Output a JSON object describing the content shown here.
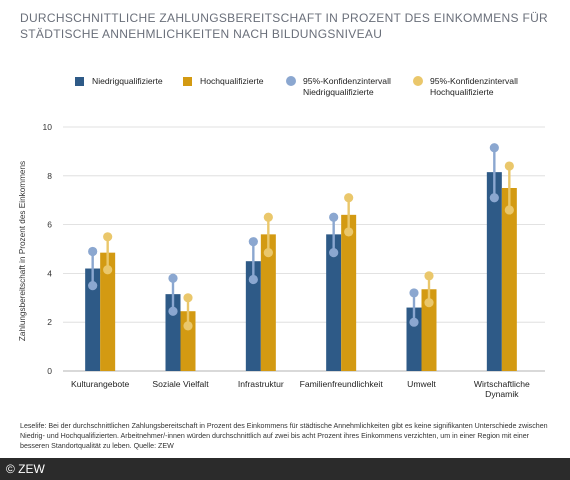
{
  "chart_data": {
    "type": "bar",
    "title": "DURCHSCHNITTLICHE ZAHLUNGSBEREITSCHAFT IN PROZENT DES EINKOMMENS FÜR STÄDTISCHE ANNEHMLICHKEITEN NACH BILDUNGSNIVEAU",
    "ylabel": "Zahlungsbereitschaft in Prozent des Einkommens",
    "xlabel": "",
    "ylim": [
      0,
      10
    ],
    "yticks": [
      "0",
      "2",
      "4",
      "6",
      "8",
      "10"
    ],
    "grid": true,
    "legend_position": "top",
    "categories": [
      "Kulturangebote",
      "Soziale Vielfalt",
      "Infrastruktur",
      "Familienfreundlichkeit",
      "Umwelt",
      "Wirtschaftliche Dynamik"
    ],
    "series": [
      {
        "name": "Niedrigqualifizierte",
        "color": "#2e5a87",
        "values": [
          4.2,
          3.15,
          4.5,
          5.6,
          2.6,
          8.15
        ],
        "ci_low": [
          3.5,
          2.45,
          3.75,
          4.85,
          2.0,
          7.1
        ],
        "ci_high": [
          4.9,
          3.8,
          5.3,
          6.3,
          3.2,
          9.15
        ]
      },
      {
        "name": "Hochqualifizierte",
        "color": "#d39a12",
        "values": [
          4.85,
          2.45,
          5.6,
          6.4,
          3.35,
          7.5
        ],
        "ci_low": [
          4.15,
          1.85,
          4.85,
          5.7,
          2.8,
          6.6
        ],
        "ci_high": [
          5.5,
          3.0,
          6.3,
          7.1,
          3.9,
          8.4
        ]
      }
    ],
    "ci_colors": {
      "low": "#8ba7d0",
      "high": "#eac76b"
    }
  },
  "legend": [
    {
      "kind": "bar",
      "color": "#2e5a87",
      "lines": [
        "Niedrigqualifizierte"
      ]
    },
    {
      "kind": "bar",
      "color": "#d39a12",
      "lines": [
        "Hochqualifizierte"
      ]
    },
    {
      "kind": "dot",
      "color": "#8ba7d0",
      "lines": [
        "95%-Konfidenzintervall",
        "Niedrigqualifizierte"
      ]
    },
    {
      "kind": "dot",
      "color": "#eac76b",
      "lines": [
        "95%-Konfidenzintervall",
        "Hochqualifizierte"
      ]
    }
  ],
  "caption": "Leselife: Bei der durchschnittlichen Zahlungsbereitschaft in Prozent des Einkommens für städtische Annehmlichkeiten gibt es keine signifikanten Unterschiede zwischen Niedrig- und Hochqualifizierten. Arbeitnehmer/-innen würden durchschnittlich auf zwei bis acht Prozent ihres Einkommens verzichten, um in einer Region mit einer besseren Standortqualität zu leben. Quelle: ZEW",
  "footer": {
    "copyright": "© ZEW"
  }
}
